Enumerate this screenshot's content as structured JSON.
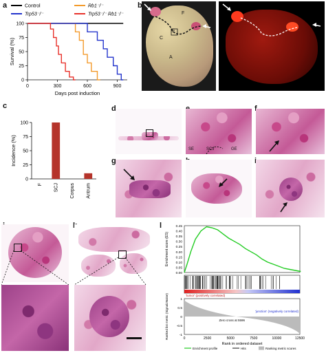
{
  "panels": {
    "a": "a",
    "b": "b",
    "c": "c",
    "d": "d",
    "e": "e",
    "f": "f",
    "g": "g",
    "h": "h",
    "i": "i",
    "j": "j",
    "k": "k",
    "l": "l"
  },
  "photo_labels": {
    "b_F": "F",
    "b_E": "E",
    "b_C": "C",
    "b_A": "A",
    "e_SE": "SE",
    "e_SCJ": "SCJ",
    "e_GE": "GE"
  },
  "colors": {
    "control": "#000000",
    "rb1": "#f39a2b",
    "trp53": "#2233cc",
    "trp53_rb1": "#e8312a",
    "bar": "#b5342b",
    "es_line": "#22cc22",
    "metric_fill": "#bbbbbb"
  },
  "chart_data": [
    {
      "type": "line",
      "panel": "a",
      "xlabel": "Days post induction",
      "ylabel": "Survival (%)",
      "xlim": [
        0,
        1000
      ],
      "ylim": [
        0,
        100
      ],
      "xticks": [
        0,
        300,
        600,
        900
      ],
      "yticks": [
        0,
        25,
        50,
        75,
        100
      ],
      "legend": [
        {
          "key": "control",
          "label": "Control"
        },
        {
          "key": "rb1",
          "label": "Rb1⁻/⁻"
        },
        {
          "key": "trp53",
          "label": "Trp53⁻/⁻"
        },
        {
          "key": "trp53_rb1",
          "label": "Trp53⁻/⁻ Rb1⁻/⁻"
        }
      ],
      "series": [
        {
          "name": "Control",
          "key": "control",
          "points": [
            [
              0,
              100
            ],
            [
              960,
              100
            ]
          ]
        },
        {
          "name": "Rb1-/-",
          "key": "rb1",
          "points": [
            [
              0,
              100
            ],
            [
              480,
              100
            ],
            [
              480,
              85
            ],
            [
              520,
              85
            ],
            [
              520,
              70
            ],
            [
              560,
              70
            ],
            [
              560,
              45
            ],
            [
              600,
              45
            ],
            [
              600,
              30
            ],
            [
              640,
              30
            ],
            [
              640,
              15
            ],
            [
              700,
              15
            ],
            [
              700,
              0
            ],
            [
              730,
              0
            ]
          ]
        },
        {
          "name": "Trp53-/-",
          "key": "trp53",
          "points": [
            [
              0,
              100
            ],
            [
              600,
              100
            ],
            [
              600,
              85
            ],
            [
              700,
              85
            ],
            [
              700,
              70
            ],
            [
              760,
              70
            ],
            [
              760,
              55
            ],
            [
              800,
              55
            ],
            [
              800,
              40
            ],
            [
              860,
              40
            ],
            [
              860,
              25
            ],
            [
              900,
              25
            ],
            [
              900,
              10
            ],
            [
              940,
              10
            ],
            [
              940,
              0
            ],
            [
              960,
              0
            ]
          ]
        },
        {
          "name": "Trp53-/- Rb1-/-",
          "key": "trp53_rb1",
          "points": [
            [
              0,
              100
            ],
            [
              230,
              100
            ],
            [
              230,
              90
            ],
            [
              260,
              90
            ],
            [
              260,
              75
            ],
            [
              290,
              75
            ],
            [
              290,
              60
            ],
            [
              310,
              60
            ],
            [
              310,
              45
            ],
            [
              340,
              45
            ],
            [
              340,
              30
            ],
            [
              380,
              30
            ],
            [
              380,
              15
            ],
            [
              420,
              15
            ],
            [
              420,
              5
            ],
            [
              460,
              5
            ],
            [
              460,
              0
            ],
            [
              480,
              0
            ]
          ]
        }
      ]
    },
    {
      "type": "bar",
      "panel": "c",
      "ylabel": "Incidence (%)",
      "categories": [
        "F",
        "SCJ",
        "Corpus",
        "Antrum"
      ],
      "values": [
        0,
        100,
        0,
        10
      ],
      "ylim": [
        0,
        100
      ],
      "yticks": [
        0,
        25,
        50,
        75,
        100
      ]
    },
    {
      "type": "line",
      "panel": "l",
      "ylabel_top": "Enrichment score (ES)",
      "ylabel_bottom": "Ranked list metric (Signal2Noise)",
      "xlabel": "Rank in ordered dataset",
      "xlim": [
        0,
        12500
      ],
      "xticks": [
        0,
        2500,
        5000,
        7500,
        10000,
        12500
      ],
      "ylim": [
        0,
        0.45
      ],
      "yticks": [
        0.45,
        0.4,
        0.35,
        0.3,
        0.25,
        0.2,
        0.15,
        0.1,
        0.05,
        0.0
      ],
      "es_points": [
        [
          0,
          0.0
        ],
        [
          300,
          0.08
        ],
        [
          700,
          0.2
        ],
        [
          1200,
          0.32
        ],
        [
          1800,
          0.4
        ],
        [
          2400,
          0.44
        ],
        [
          3000,
          0.43
        ],
        [
          3600,
          0.41
        ],
        [
          4200,
          0.37
        ],
        [
          4800,
          0.33
        ],
        [
          5400,
          0.3
        ],
        [
          6000,
          0.27
        ],
        [
          6600,
          0.23
        ],
        [
          7200,
          0.2
        ],
        [
          7800,
          0.17
        ],
        [
          8400,
          0.13
        ],
        [
          9000,
          0.1
        ],
        [
          9600,
          0.08
        ],
        [
          10200,
          0.06
        ],
        [
          10800,
          0.04
        ],
        [
          11400,
          0.03
        ],
        [
          12000,
          0.02
        ],
        [
          12600,
          0.01
        ]
      ],
      "metric_ylim": [
        -1,
        1
      ],
      "metric_yticks": [
        1,
        0.5,
        0,
        -0.5,
        -1
      ],
      "top_label": "'tumor' (positively correlated)",
      "bottom_label": "'junction' (negatively correlated)",
      "zero_cross": "Zero cross at 5596",
      "legend": [
        "Enrichment profile",
        "Hits",
        "Ranking metric scores"
      ]
    }
  ]
}
